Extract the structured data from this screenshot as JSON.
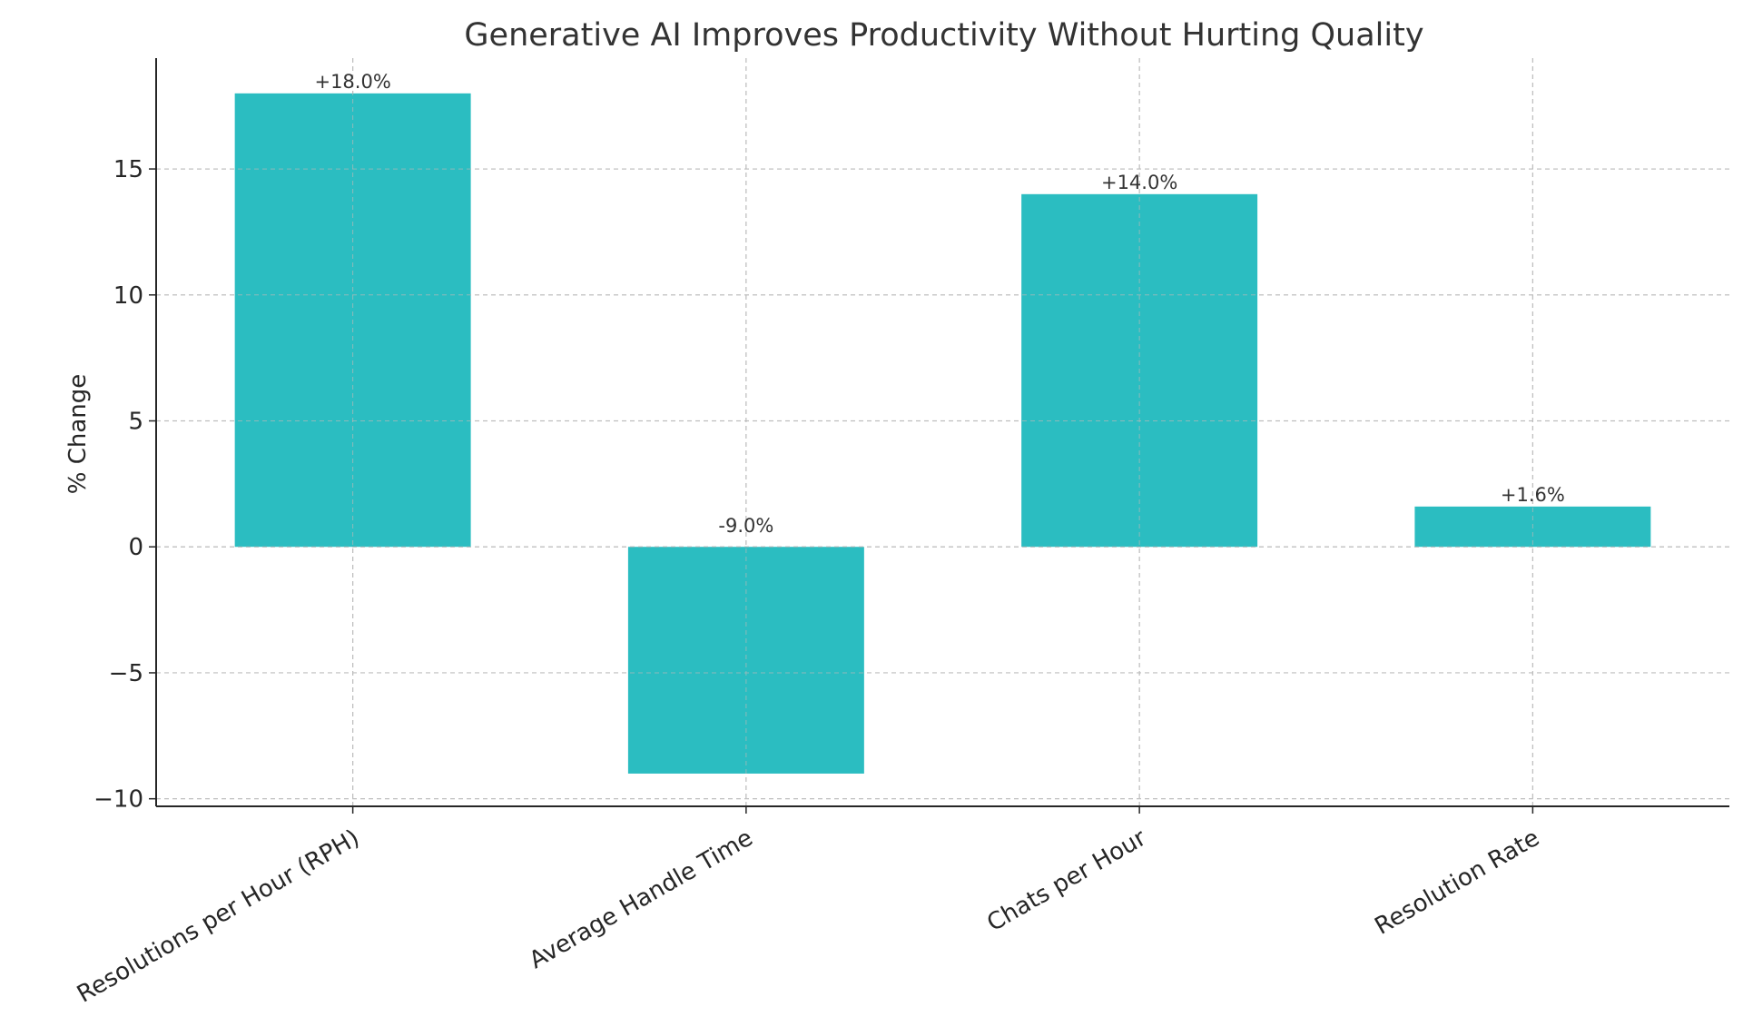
{
  "chart_data": {
    "type": "bar",
    "title": "Generative AI Improves Productivity Without Hurting Quality",
    "xlabel": "",
    "ylabel": "% Change",
    "categories": [
      "Resolutions per Hour (RPH)",
      "Average Handle Time",
      "Chats per Hour",
      "Resolution Rate"
    ],
    "values": [
      18.0,
      -9.0,
      14.0,
      1.6
    ],
    "data_labels": [
      "+18.0%",
      "-9.0%",
      "+14.0%",
      "+1.6%"
    ],
    "yticks": [
      -10,
      -5,
      0,
      5,
      10,
      15
    ],
    "ytick_labels": [
      "−10",
      "−5",
      "0",
      "5",
      "10",
      "15"
    ],
    "ylim": [
      -10.3,
      19.4
    ],
    "grid": true,
    "bar_color": "#2bbdc1",
    "grid_color": "#c8c8c8",
    "axis_color": "#262626",
    "text_color": "#333333"
  }
}
